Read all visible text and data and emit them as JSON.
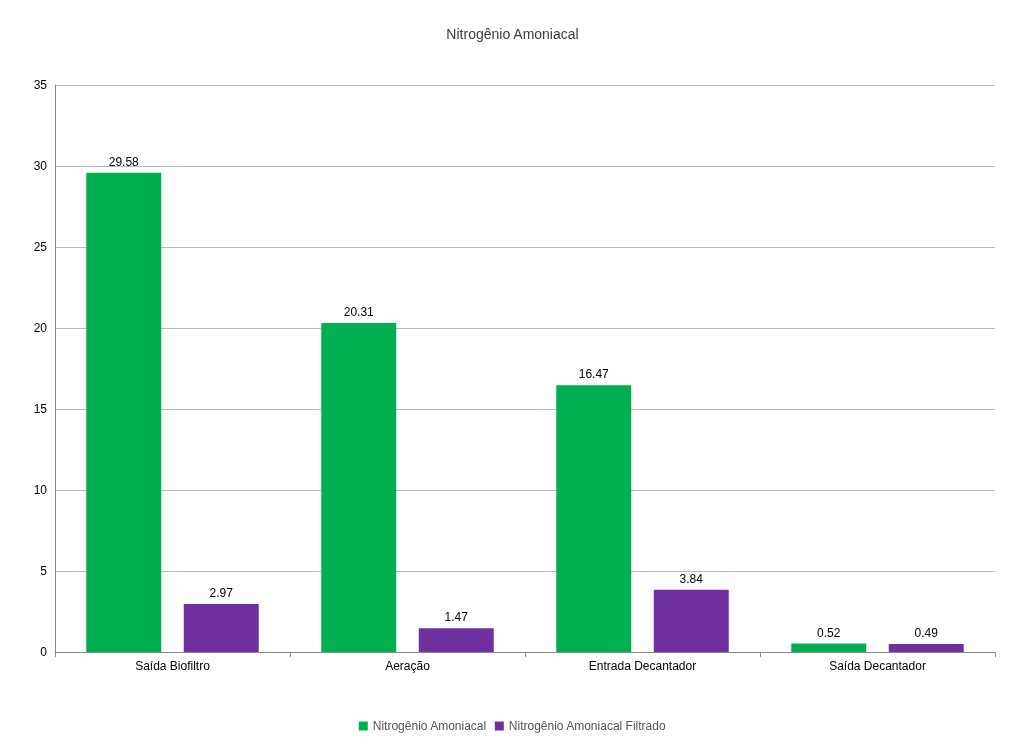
{
  "chart_data": {
    "type": "bar",
    "title": "Nitrogênio Amoniacal",
    "categories": [
      "Saída Biofiltro",
      "Aeração",
      "Entrada Decantador",
      "Saída Decantador"
    ],
    "series": [
      {
        "name": "Nitrogênio Amoniacal",
        "color": "#00b050",
        "values": [
          29.58,
          20.31,
          16.47,
          0.52
        ]
      },
      {
        "name": "Nitrogênio Amoniacal Filtrado",
        "color": "#7030a0",
        "values": [
          2.97,
          1.47,
          3.84,
          0.49
        ]
      }
    ],
    "ylim": [
      0,
      35
    ],
    "yticks": [
      0,
      5,
      10,
      15,
      20,
      25,
      30,
      35
    ],
    "grid": "y",
    "legend": "bottom",
    "data_labels": true
  }
}
